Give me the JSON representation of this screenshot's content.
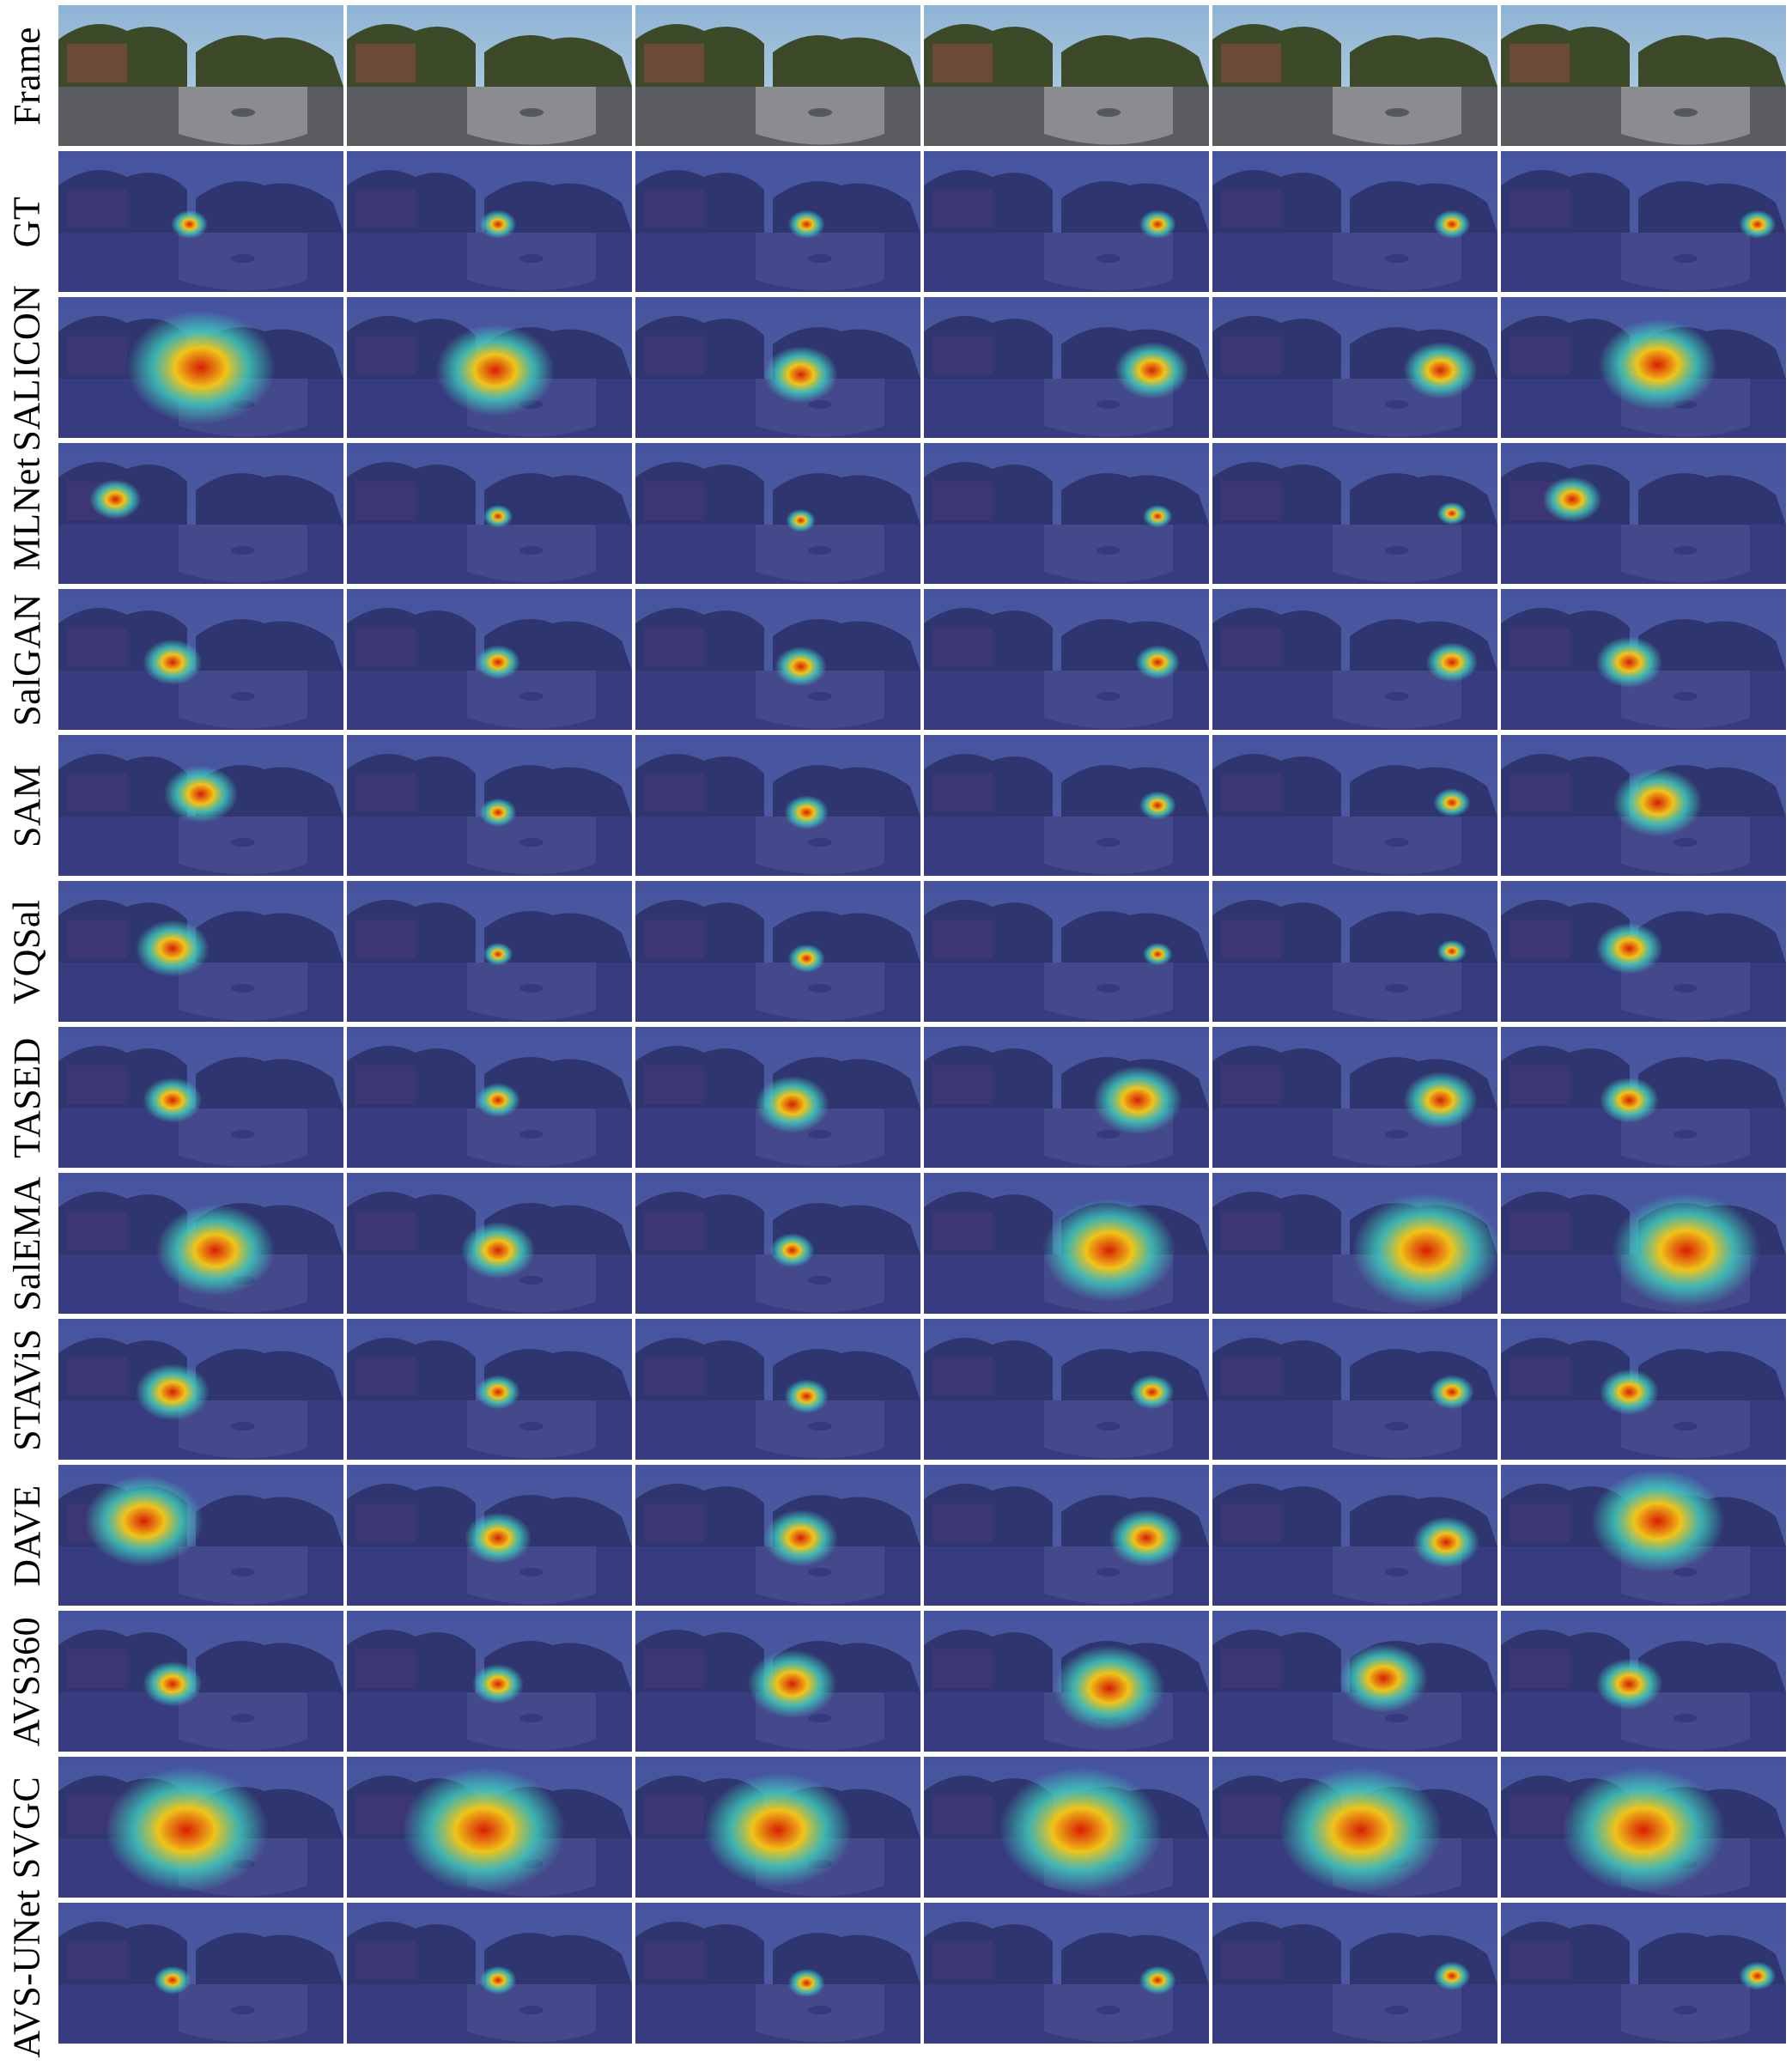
{
  "figure": {
    "columns": 6,
    "rows": [
      {
        "label": "Frame",
        "kind": "frame"
      },
      {
        "label": "GT",
        "kind": "sal"
      },
      {
        "label": "SALICON",
        "kind": "sal"
      },
      {
        "label": "MLNet",
        "kind": "sal"
      },
      {
        "label": "SalGAN",
        "kind": "sal"
      },
      {
        "label": "SAM",
        "kind": "sal"
      },
      {
        "label": "VQSal",
        "kind": "sal"
      },
      {
        "label": "TASED",
        "kind": "sal"
      },
      {
        "label": "SalEMA",
        "kind": "sal"
      },
      {
        "label": "STAViS",
        "kind": "sal"
      },
      {
        "label": "DAVE",
        "kind": "sal"
      },
      {
        "label": "AVS360",
        "kind": "sal"
      },
      {
        "label": "SVGC",
        "kind": "sal"
      },
      {
        "label": "AVS-UNet",
        "kind": "sal"
      }
    ],
    "colors": {
      "overlay": "#2a2f8a",
      "sky": "#b9d3e6",
      "trees": "#3d4a2a",
      "road": "#5a5c60",
      "hot": "#d81e05",
      "warm": "#f0c419",
      "mid": "#3fd0c0"
    }
  }
}
